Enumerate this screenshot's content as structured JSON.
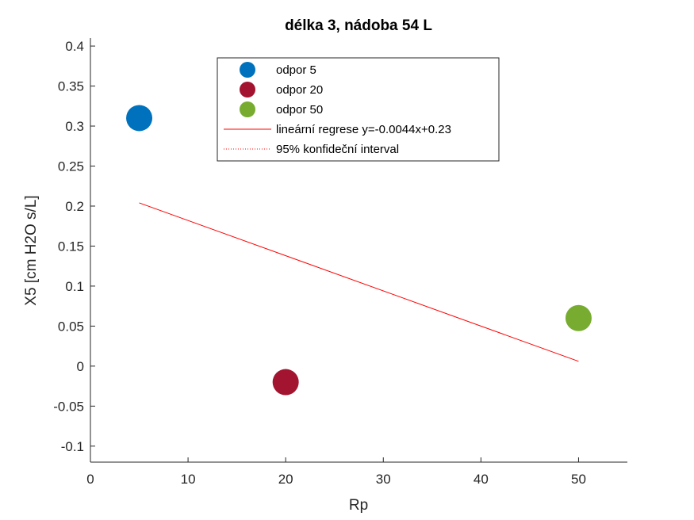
{
  "chart_data": {
    "type": "scatter",
    "title": "délka 3, nádoba 54 L",
    "xlabel": "Rp",
    "ylabel": "X5 [cm H2O s/L]",
    "xlim": [
      0,
      55
    ],
    "ylim": [
      -0.12,
      0.41
    ],
    "xticks": [
      0,
      10,
      20,
      30,
      40,
      50
    ],
    "yticks": [
      -0.1,
      -0.05,
      0,
      0.05,
      0.1,
      0.15,
      0.2,
      0.25,
      0.3,
      0.35,
      0.4
    ],
    "xtick_labels": [
      "0",
      "10",
      "20",
      "30",
      "40",
      "50"
    ],
    "ytick_labels": [
      "-0.1",
      "-0.05",
      "0",
      "0.05",
      "0.1",
      "0.15",
      "0.2",
      "0.25",
      "0.3",
      "0.35",
      "0.4"
    ],
    "grid": false,
    "legend_position": "top",
    "series": [
      {
        "name": "odpor 5",
        "type": "scatter",
        "color": "#0072BD",
        "points": [
          {
            "x": 5,
            "y": 0.31
          }
        ]
      },
      {
        "name": "odpor 20",
        "type": "scatter",
        "color": "#A2142F",
        "points": [
          {
            "x": 20,
            "y": -0.02
          }
        ]
      },
      {
        "name": "odpor 50",
        "type": "scatter",
        "color": "#77AC30",
        "points": [
          {
            "x": 50,
            "y": 0.06
          }
        ]
      },
      {
        "name": "lineární regrese y=-0.0044x+0.23",
        "type": "line",
        "color": "#FF0000",
        "points": [
          {
            "x": 5,
            "y": 0.204
          },
          {
            "x": 50,
            "y": 0.006
          }
        ]
      },
      {
        "name": "95% konfideční interval",
        "type": "line",
        "style": "dotted",
        "color": "#FF0000",
        "points": []
      }
    ]
  }
}
